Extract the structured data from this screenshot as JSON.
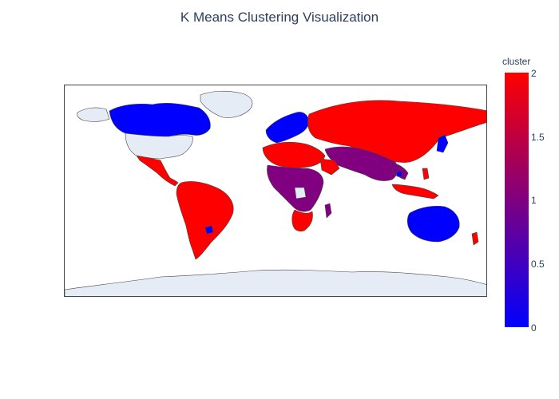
{
  "title": "K Means Clustering Visualization",
  "colorbar": {
    "title": "cluster",
    "ticks": [
      "0",
      "0.5",
      "1",
      "1.5",
      "2"
    ],
    "range": [
      0,
      2
    ],
    "colorscale": [
      "#0000ff",
      "#ff0000"
    ]
  },
  "map": {
    "projection": "natural-earth-like",
    "land_color": "#e5ecf6",
    "border_color": "#444444",
    "clusters": {
      "0": [
        "Canada",
        "Greenland (partial)",
        "Western Europe",
        "Japan",
        "Australia",
        "Uruguay",
        "Cambodia"
      ],
      "1": [
        "Central Africa",
        "Middle East",
        "South Asia",
        "Indochina",
        "Mongolia"
      ],
      "2": [
        "Russia",
        "China",
        "Eastern Europe",
        "Mexico",
        "Central America",
        "South America",
        "North Africa",
        "Southern Africa",
        "Saudi Arabia",
        "Indonesia",
        "New Zealand",
        "Philippines"
      ]
    },
    "no_data": [
      "United States",
      "Greenland",
      "Antarctica",
      "Parts of Africa"
    ]
  }
}
